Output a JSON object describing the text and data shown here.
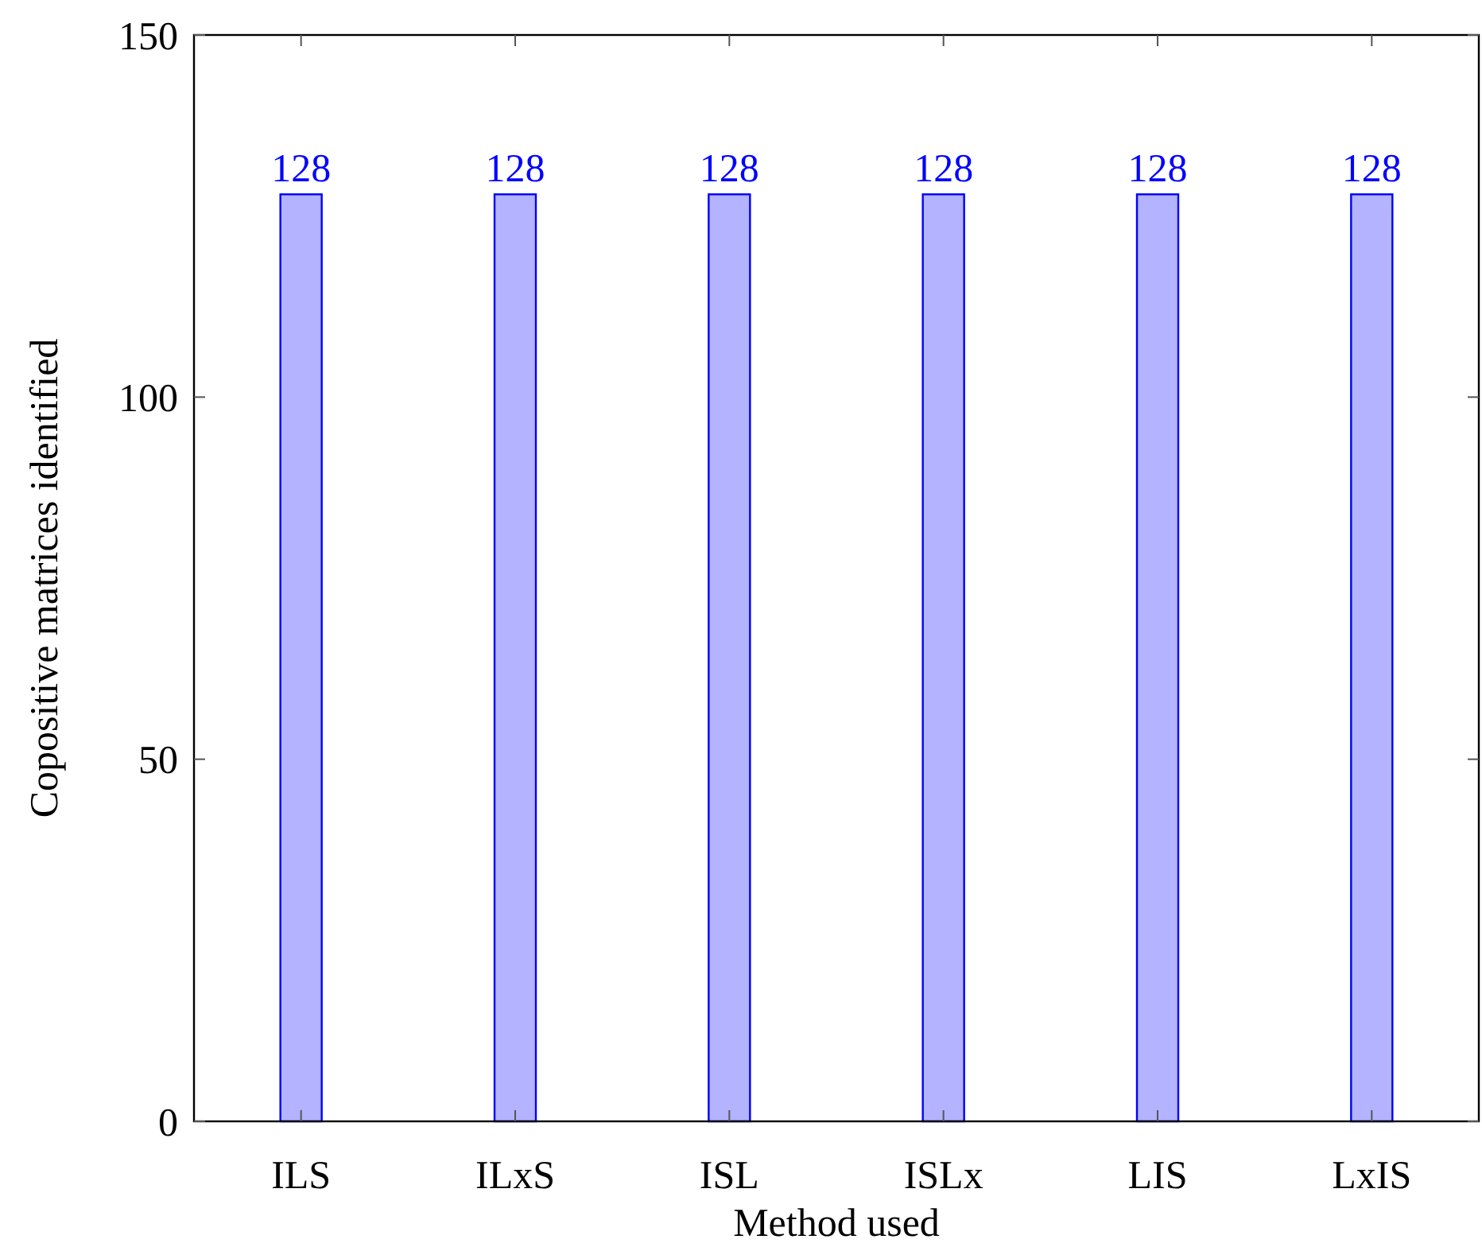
{
  "chart_data": {
    "type": "bar",
    "xlabel": "Method used",
    "ylabel": "Copositive matrices identified",
    "categories": [
      "ILS",
      "ILxS",
      "ISL",
      "ISLx",
      "LIS",
      "LxIS"
    ],
    "values": [
      128,
      128,
      128,
      128,
      128,
      128
    ],
    "color": "#b3b3ff",
    "ylim": [
      0,
      150
    ],
    "yticks": [
      0,
      50,
      100,
      150
    ],
    "data_labels": true
  }
}
